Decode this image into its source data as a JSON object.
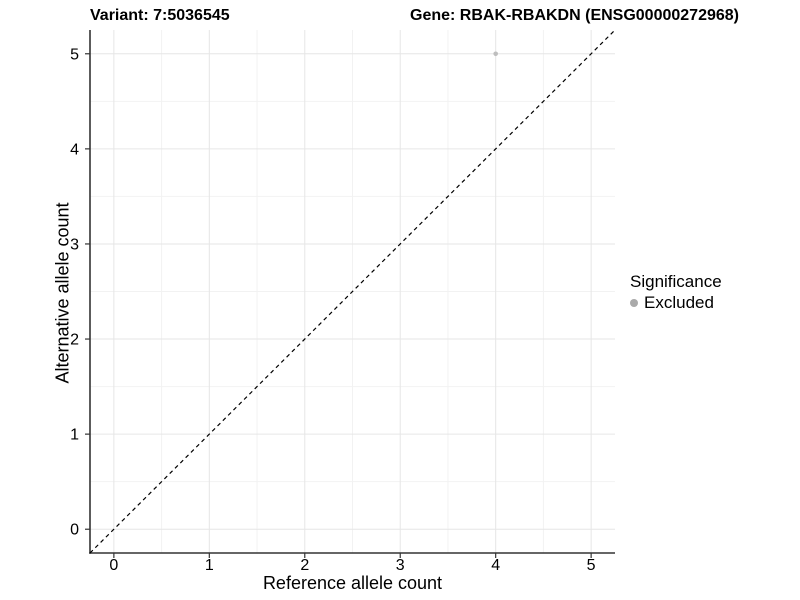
{
  "chart_data": {
    "type": "scatter",
    "titles": {
      "variant": "Variant: 7:5036545",
      "gene": "Gene: RBAK-RBAKDN (ENSG00000272968)"
    },
    "xlabel": "Reference allele count",
    "ylabel": "Alternative allele count",
    "xlim": [
      -0.25,
      5.25
    ],
    "ylim": [
      -0.25,
      5.25
    ],
    "x_ticks": [
      0,
      1,
      2,
      3,
      4,
      5
    ],
    "y_ticks": [
      0,
      1,
      2,
      3,
      4,
      5
    ],
    "x_minor": [
      0.5,
      1.5,
      2.5,
      3.5,
      4.5
    ],
    "y_minor": [
      0.5,
      1.5,
      2.5,
      3.5,
      4.5
    ],
    "grid": "major+minor",
    "points": [
      {
        "x": 4,
        "y": 5,
        "series": "Excluded",
        "color": "#bebebe",
        "radius": 2.3
      }
    ],
    "reference_line": {
      "type": "identity",
      "style": "dashed",
      "color": "#000000"
    },
    "legend": {
      "title": "Significance",
      "position": "right",
      "entries": [
        {
          "label": "Excluded",
          "color": "#aaaaaa",
          "marker": "circle"
        }
      ]
    }
  },
  "style": {
    "grid_major_color": "#e6e6e6",
    "grid_minor_color": "#f2f2f2",
    "axis_color": "#333333",
    "text_color": "#000000",
    "background": "#ffffff",
    "tick_font_size": 16
  }
}
